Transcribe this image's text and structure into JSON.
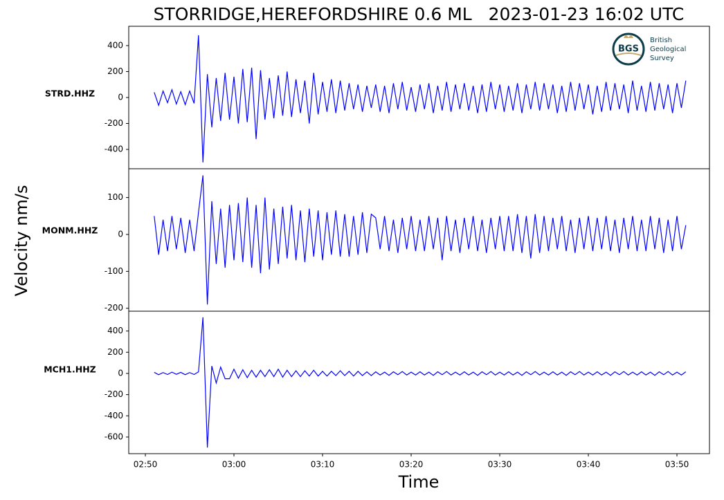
{
  "chart_data": {
    "type": "line",
    "title": "STORRIDGE,HEREFORDSHIRE 0.6 ML   2023-01-23 16:02 UTC",
    "xlabel": "Time",
    "ylabel": "Velocity nm/s",
    "color": "#0000ff",
    "logo": {
      "mark": "BGS",
      "lines": [
        "British",
        "Geological",
        "Survey"
      ]
    },
    "xlim": [
      168.125,
      233.67
    ],
    "xticks": [
      {
        "value": 170,
        "label": "02:50"
      },
      {
        "value": 180,
        "label": "03:00"
      },
      {
        "value": 190,
        "label": "03:10"
      },
      {
        "value": 200,
        "label": "03:20"
      },
      {
        "value": 210,
        "label": "03:30"
      },
      {
        "value": 220,
        "label": "03:40"
      },
      {
        "value": 230,
        "label": "03:50"
      }
    ],
    "x": [
      171,
      171.5,
      172,
      172.5,
      173,
      173.5,
      174,
      174.5,
      175,
      175.5,
      176,
      176.5,
      177,
      177.5,
      178,
      178.5,
      179,
      179.5,
      180,
      180.5,
      181,
      181.5,
      182,
      182.5,
      183,
      183.5,
      184,
      184.5,
      185,
      185.5,
      186,
      186.5,
      187,
      187.5,
      188,
      188.5,
      189,
      189.5,
      190,
      190.5,
      191,
      191.5,
      192,
      192.5,
      193,
      193.5,
      194,
      194.5,
      195,
      195.5,
      196,
      196.5,
      197,
      197.5,
      198,
      198.5,
      199,
      199.5,
      200,
      200.5,
      201,
      201.5,
      202,
      202.5,
      203,
      203.5,
      204,
      204.5,
      205,
      205.5,
      206,
      206.5,
      207,
      207.5,
      208,
      208.5,
      209,
      209.5,
      210,
      210.5,
      211,
      211.5,
      212,
      212.5,
      213,
      213.5,
      214,
      214.5,
      215,
      215.5,
      216,
      216.5,
      217,
      217.5,
      218,
      218.5,
      219,
      219.5,
      220,
      220.5,
      221,
      221.5,
      222,
      222.5,
      223,
      223.5,
      224,
      224.5,
      225,
      225.5,
      226,
      226.5,
      227,
      227.5,
      228,
      228.5,
      229,
      229.5,
      230,
      230.5,
      231
    ],
    "series": [
      {
        "name": "STRD.HHZ",
        "ylim": [
          -549,
          549
        ],
        "yticks": [
          -400,
          -200,
          0,
          200,
          400
        ],
        "values": [
          40,
          -60,
          50,
          -40,
          60,
          -50,
          45,
          -55,
          50,
          -45,
          480,
          -500,
          180,
          -230,
          150,
          -180,
          190,
          -170,
          160,
          -200,
          220,
          -190,
          230,
          -320,
          210,
          -170,
          150,
          -160,
          170,
          -140,
          200,
          -150,
          140,
          -120,
          130,
          -200,
          190,
          -130,
          120,
          -110,
          140,
          -120,
          130,
          -100,
          110,
          -90,
          100,
          -110,
          90,
          -80,
          100,
          -110,
          90,
          -120,
          110,
          -90,
          120,
          -100,
          80,
          -110,
          100,
          -90,
          110,
          -120,
          90,
          -100,
          120,
          -110,
          100,
          -90,
          110,
          -100,
          90,
          -120,
          100,
          -110,
          120,
          -90,
          100,
          -110,
          90,
          -100,
          110,
          -120,
          100,
          -90,
          120,
          -100,
          110,
          -90,
          100,
          -120,
          90,
          -110,
          120,
          -100,
          110,
          -90,
          100,
          -130,
          90,
          -110,
          120,
          -100,
          110,
          -90,
          100,
          -120,
          130,
          -100,
          90,
          -110,
          120,
          -100,
          110,
          -90,
          100,
          -120,
          110,
          -80,
          130
        ]
      },
      {
        "name": "MONM.HHZ",
        "ylim": [
          -208,
          178
        ],
        "yticks": [
          -200,
          -100,
          0,
          100
        ],
        "values": [
          50,
          -55,
          40,
          -45,
          50,
          -40,
          45,
          -50,
          40,
          -45,
          60,
          160,
          -190,
          90,
          -80,
          70,
          -90,
          80,
          -70,
          85,
          -75,
          100,
          -90,
          80,
          -105,
          100,
          -95,
          70,
          -80,
          75,
          -65,
          80,
          -70,
          65,
          -75,
          70,
          -60,
          65,
          -70,
          60,
          -55,
          65,
          -60,
          55,
          -60,
          50,
          -55,
          60,
          -50,
          55,
          45,
          -40,
          50,
          -45,
          40,
          -50,
          45,
          -40,
          50,
          -45,
          40,
          -45,
          50,
          -40,
          45,
          -70,
          50,
          -45,
          40,
          -50,
          45,
          -40,
          50,
          -45,
          40,
          -50,
          45,
          -40,
          50,
          -45,
          50,
          -45,
          55,
          -50,
          50,
          -65,
          55,
          -50,
          50,
          -45,
          45,
          -40,
          50,
          -45,
          40,
          -50,
          45,
          -40,
          50,
          -45,
          45,
          -40,
          50,
          -45,
          40,
          -50,
          45,
          -40,
          50,
          -45,
          40,
          -45,
          50,
          -40,
          45,
          -50,
          40,
          -45,
          50,
          -40,
          25
        ]
      },
      {
        "name": "MCH1.HHZ",
        "ylim": [
          -757,
          587
        ],
        "yticks": [
          -600,
          -400,
          -200,
          0,
          200,
          400
        ],
        "values": [
          10,
          -12,
          8,
          -10,
          12,
          -8,
          10,
          -12,
          8,
          -10,
          15,
          530,
          -700,
          70,
          -90,
          60,
          -50,
          -50,
          40,
          -45,
          35,
          -40,
          30,
          -35,
          30,
          -30,
          35,
          -30,
          40,
          -35,
          30,
          -30,
          25,
          -30,
          25,
          -25,
          30,
          -25,
          20,
          -25,
          20,
          -20,
          25,
          -20,
          20,
          -25,
          20,
          -20,
          15,
          -20,
          15,
          -15,
          12,
          -18,
          15,
          -12,
          18,
          -15,
          12,
          -15,
          15,
          -15,
          12,
          -18,
          15,
          -12,
          18,
          -15,
          12,
          -15,
          15,
          -15,
          12,
          -18,
          15,
          -12,
          18,
          -15,
          12,
          -15,
          15,
          -15,
          12,
          -18,
          15,
          -12,
          18,
          -15,
          12,
          -15,
          15,
          -15,
          12,
          -18,
          15,
          -12,
          18,
          -15,
          12,
          -15,
          15,
          -15,
          12,
          -18,
          15,
          -12,
          18,
          -15,
          12,
          -15,
          15,
          -15,
          12,
          -18,
          15,
          -12,
          18,
          -15,
          12,
          -15,
          15
        ]
      }
    ]
  }
}
